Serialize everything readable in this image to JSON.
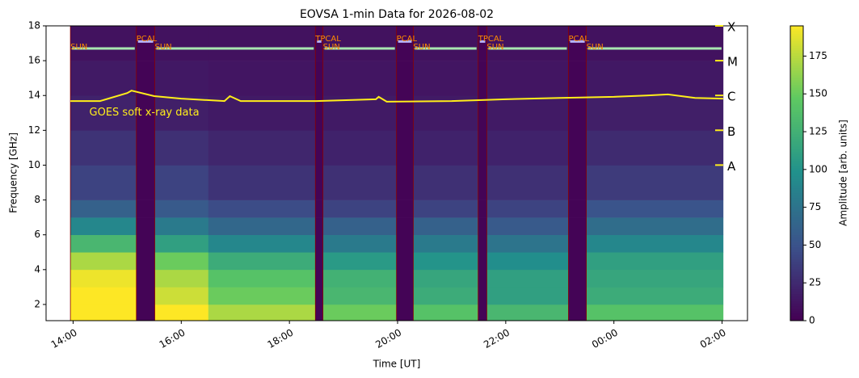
{
  "chart_data": {
    "type": "heatmap",
    "title": "EOVSA 1-min Data for 2026-08-02",
    "x_label": "Time [UT]",
    "y_label": "Frequency [GHz]",
    "colorbar_label": "Amplitude [arb. units]",
    "colormap": "viridis",
    "clim": [
      0,
      195
    ],
    "colorbar_ticks": [
      0,
      25,
      50,
      75,
      100,
      125,
      150,
      175
    ],
    "xlim": [
      13.5,
      26.47
    ],
    "xticks": [
      {
        "value": 14,
        "label": "14:00"
      },
      {
        "value": 16,
        "label": "16:00"
      },
      {
        "value": 18,
        "label": "18:00"
      },
      {
        "value": 20,
        "label": "20:00"
      },
      {
        "value": 22,
        "label": "22:00"
      },
      {
        "value": 24,
        "label": "00:00"
      },
      {
        "value": 26,
        "label": "02:00"
      }
    ],
    "ylim": [
      1.07,
      18
    ],
    "yticks": [
      2,
      4,
      6,
      8,
      10,
      12,
      14,
      16,
      18
    ],
    "y2lim": [
      -12.47,
      -4
    ],
    "y2ticks": [
      {
        "value": -8,
        "label": "A"
      },
      {
        "value": -7,
        "label": "B"
      },
      {
        "value": -6,
        "label": "C"
      },
      {
        "value": -5,
        "label": "M"
      },
      {
        "value": -4,
        "label": "X"
      }
    ],
    "time_bins": [
      13.95,
      15.17,
      15.51,
      16.5,
      18.48,
      18.62,
      19.98,
      20.29,
      21.49,
      21.65,
      23.16,
      23.49,
      26.02
    ],
    "freq_bins": [
      1.07,
      2,
      3,
      4,
      5,
      6,
      7,
      8,
      10,
      12,
      14,
      16,
      18
    ],
    "values": [
      [
        195,
        2,
        195,
        170,
        2,
        150,
        2,
        140,
        2,
        130,
        2,
        140
      ],
      [
        195,
        2,
        180,
        150,
        2,
        130,
        2,
        120,
        2,
        110,
        2,
        120
      ],
      [
        190,
        2,
        170,
        140,
        2,
        125,
        2,
        115,
        2,
        110,
        2,
        115
      ],
      [
        170,
        2,
        150,
        120,
        2,
        105,
        2,
        100,
        2,
        95,
        2,
        110
      ],
      [
        130,
        2,
        110,
        90,
        2,
        80,
        2,
        80,
        2,
        75,
        2,
        90
      ],
      [
        90,
        2,
        80,
        65,
        2,
        60,
        2,
        60,
        2,
        55,
        2,
        70
      ],
      [
        60,
        2,
        55,
        45,
        2,
        40,
        2,
        40,
        2,
        40,
        2,
        50
      ],
      [
        40,
        2,
        40,
        30,
        2,
        28,
        2,
        28,
        2,
        28,
        2,
        35
      ],
      [
        30,
        2,
        28,
        22,
        2,
        20,
        2,
        20,
        2,
        20,
        2,
        25
      ],
      [
        20,
        2,
        18,
        15,
        2,
        15,
        2,
        15,
        2,
        15,
        2,
        18
      ],
      [
        15,
        2,
        14,
        12,
        2,
        12,
        2,
        12,
        2,
        12,
        2,
        14
      ],
      [
        10,
        2,
        10,
        10,
        2,
        10,
        2,
        10,
        2,
        10,
        2,
        10
      ]
    ],
    "goes": {
      "name": "GOES soft x-ray data",
      "color": "#ffee1a",
      "axis": "y2",
      "x": [
        13.95,
        14.5,
        15.0,
        15.08,
        15.5,
        16.0,
        16.8,
        16.9,
        17.1,
        18.5,
        19.6,
        19.65,
        19.8,
        21.0,
        22.0,
        23.0,
        24.0,
        24.6,
        25.0,
        25.5,
        26.02
      ],
      "values": [
        -6.16,
        -6.16,
        -5.93,
        -5.86,
        -6.02,
        -6.09,
        -6.16,
        -6.02,
        -6.16,
        -6.16,
        -6.11,
        -6.04,
        -6.18,
        -6.16,
        -6.11,
        -6.07,
        -6.04,
        -6.0,
        -5.97,
        -6.07,
        -6.09
      ]
    },
    "scans": {
      "sun": [
        {
          "label": "SUN",
          "start": 13.95,
          "end": 15.17
        },
        {
          "label": "SUN",
          "start": 15.51,
          "end": 18.48
        },
        {
          "label": "SUN",
          "start": 18.62,
          "end": 19.98
        },
        {
          "label": "SUN",
          "start": 20.29,
          "end": 21.49
        },
        {
          "label": "SUN",
          "start": 21.65,
          "end": 23.16
        },
        {
          "label": "SUN",
          "start": 23.49,
          "end": 26.02
        }
      ],
      "calibration": [
        {
          "label": "PCAL",
          "start": 15.17,
          "end": 15.51
        },
        {
          "label": "TPCAL",
          "start": 18.48,
          "end": 18.62
        },
        {
          "label": "PCAL",
          "start": 19.98,
          "end": 20.29
        },
        {
          "label": "TPCAL",
          "start": 21.49,
          "end": 21.65
        },
        {
          "label": "PCAL",
          "start": 23.16,
          "end": 23.49
        }
      ]
    },
    "sun_color": "#a8e6b0",
    "cal_color": "#b4b4ff",
    "label_color": "#ff8c00"
  }
}
